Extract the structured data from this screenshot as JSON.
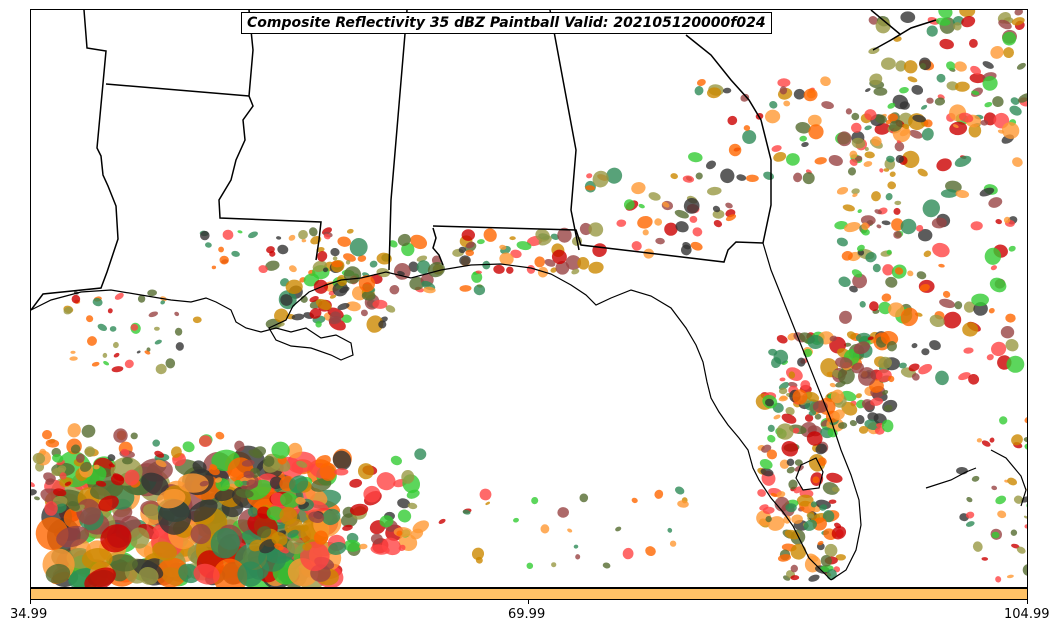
{
  "title": "Composite Reflectivity 35 dBZ Paintball Valid: 202105120000f024",
  "colorbar": {
    "ticks": [
      "34.99",
      "69.99",
      "104.99"
    ],
    "color": "#ffc266"
  },
  "palette": [
    "#ff4444",
    "#33cc33",
    "#ff9933",
    "#994444",
    "#556b2f",
    "#999944",
    "#cc8800",
    "#333333",
    "#ff6600",
    "#2e8b57",
    "#cc0000"
  ],
  "map": {
    "region": "US Gulf Coast and Florida",
    "outline_color": "#000000"
  }
}
